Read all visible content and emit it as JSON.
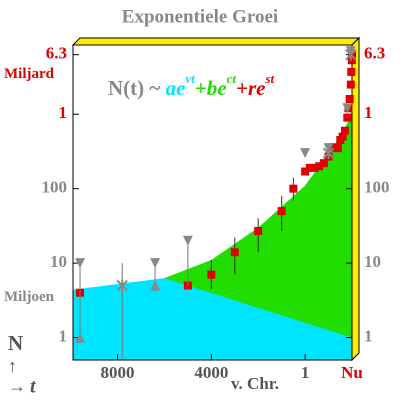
{
  "chart_data": {
    "type": "scatter",
    "title": "Exponentiele Groei",
    "xlabel": "v. Chr.",
    "axis_units": [
      "Miljard",
      "Miljoen"
    ],
    "corner": {
      "n": "N",
      "up": "↑",
      "arrow": "→",
      "t": "t"
    },
    "formula": [
      {
        "text": "N(t) ~ ",
        "color": "#888888"
      },
      {
        "text": "ae",
        "color": "#00e5ff"
      },
      {
        "text": "vt",
        "color": "#00e5ff",
        "sup": true
      },
      {
        "text": "+",
        "color": "#22dd00"
      },
      {
        "text": "be",
        "color": "#22dd00"
      },
      {
        "text": "ct",
        "color": "#22dd00",
        "sup": true
      },
      {
        "text": "+",
        "color": "#e00000"
      },
      {
        "text": "re",
        "color": "#e00000"
      },
      {
        "text": "st",
        "color": "#e00000",
        "sup": true
      }
    ],
    "xlim": [
      -9900,
      2000
    ],
    "ylim": [
      0.5,
      8500
    ],
    "log_y": true,
    "xticks": [
      {
        "value": -8000,
        "label": "8000"
      },
      {
        "value": -4000,
        "label": "4000"
      },
      1,
      {
        "value": 2000,
        "label": "Nu"
      }
    ],
    "xtick_colors": [
      "#555555",
      "#555555",
      "#555555",
      "#e00000"
    ],
    "yticks": [
      1,
      10,
      100,
      {
        "value": 1000,
        "label": "1"
      },
      {
        "value": 6300,
        "label": "6.3"
      }
    ],
    "ytick_colors": [
      "#888888",
      "#888888",
      "#888888",
      "#e00000",
      "#e00000"
    ],
    "areas": [
      {
        "color": "#22dd00",
        "x": [
          -6000,
          -4000,
          -2000,
          0,
          1000,
          1500,
          2000
        ],
        "values": [
          6.3,
          11,
          30,
          110,
          300,
          500,
          1000
        ]
      },
      {
        "color": "#00e5ff",
        "x": [
          -9900,
          -6000,
          2000
        ],
        "values": [
          4.4,
          6.3,
          1
        ]
      }
    ],
    "series": [
      {
        "marker": "square",
        "color": "#e00000",
        "x": [
          -9600,
          -5000,
          -4000,
          -3000,
          -2000,
          -1000,
          -500,
          0,
          200,
          400,
          600,
          800,
          1000,
          1200,
          1400,
          1500,
          1600,
          1700,
          1800,
          1850,
          1900,
          1950,
          1970,
          1990,
          2000
        ],
        "values": [
          4,
          5,
          7,
          14,
          27,
          50,
          100,
          170,
          190,
          190,
          200,
          220,
          270,
          360,
          350,
          450,
          500,
          600,
          900,
          1200,
          1600,
          2500,
          3700,
          5300,
          6100
        ],
        "low": [
          null,
          null,
          4.5,
          7,
          14,
          27,
          70,
          null,
          null,
          null,
          null,
          null,
          null,
          null,
          null,
          null,
          null,
          null,
          null,
          null,
          null,
          null,
          null,
          null,
          null
        ],
        "high": [
          null,
          null,
          11,
          22,
          40,
          80,
          140,
          null,
          null,
          null,
          null,
          null,
          null,
          null,
          null,
          null,
          null,
          null,
          null,
          null,
          null,
          null,
          null,
          null,
          null
        ]
      },
      {
        "marker": "triangle-down",
        "color": "#888888",
        "x": [
          -9600,
          -6400,
          -5000,
          0,
          1000,
          1800,
          1950
        ],
        "values": [
          10,
          10,
          20,
          300,
          350,
          1200,
          7000
        ],
        "low": [
          1,
          5,
          5,
          null,
          null,
          null,
          null
        ],
        "high": [
          10,
          10,
          20,
          null,
          null,
          null,
          null
        ]
      },
      {
        "marker": "triangle-up",
        "color": "#888888",
        "x": [
          -9600,
          -6400
        ],
        "values": [
          1,
          5
        ]
      },
      {
        "marker": "star",
        "color": "#888888",
        "x": [
          -7800,
          1000,
          1950
        ],
        "values": [
          5,
          300,
          6300
        ],
        "low": [
          0.5,
          null,
          null
        ],
        "high": [
          10,
          null,
          null
        ]
      }
    ]
  }
}
